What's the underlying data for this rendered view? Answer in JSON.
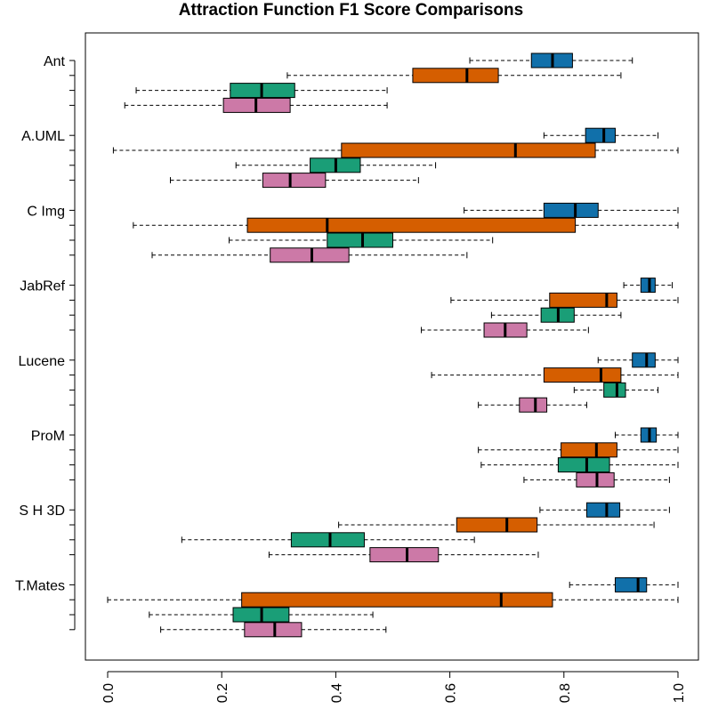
{
  "chart_data": {
    "type": "boxplot",
    "orientation": "horizontal",
    "title": "Attraction Function F1 Score Comparisons",
    "xlabel": "",
    "ylabel": "",
    "xlim": [
      0.0,
      1.0
    ],
    "x_ticks": [
      "0.0",
      "0.2",
      "0.4",
      "0.6",
      "0.8",
      "1.0"
    ],
    "series_colors": [
      "#1170aa",
      "#d55e00",
      "#1a9e77",
      "#cc79a7"
    ],
    "groups": [
      {
        "name": "Ant",
        "boxes": [
          {
            "min": 0.635,
            "q1": 0.743,
            "median": 0.78,
            "q3": 0.815,
            "max": 0.92
          },
          {
            "min": 0.315,
            "q1": 0.535,
            "median": 0.63,
            "q3": 0.685,
            "max": 0.9
          },
          {
            "min": 0.05,
            "q1": 0.215,
            "median": 0.27,
            "q3": 0.328,
            "max": 0.49
          },
          {
            "min": 0.03,
            "q1": 0.203,
            "median": 0.26,
            "q3": 0.32,
            "max": 0.49
          }
        ]
      },
      {
        "name": "A.UML",
        "boxes": [
          {
            "min": 0.765,
            "q1": 0.838,
            "median": 0.87,
            "q3": 0.89,
            "max": 0.965
          },
          {
            "min": 0.01,
            "q1": 0.41,
            "median": 0.715,
            "q3": 0.855,
            "max": 1.0
          },
          {
            "min": 0.225,
            "q1": 0.355,
            "median": 0.4,
            "q3": 0.443,
            "max": 0.575
          },
          {
            "min": 0.11,
            "q1": 0.272,
            "median": 0.32,
            "q3": 0.382,
            "max": 0.545
          }
        ]
      },
      {
        "name": "C Img",
        "boxes": [
          {
            "min": 0.625,
            "q1": 0.765,
            "median": 0.82,
            "q3": 0.86,
            "max": 1.0
          },
          {
            "min": 0.045,
            "q1": 0.245,
            "median": 0.385,
            "q3": 0.82,
            "max": 1.0
          },
          {
            "min": 0.213,
            "q1": 0.385,
            "median": 0.447,
            "q3": 0.5,
            "max": 0.675
          },
          {
            "min": 0.078,
            "q1": 0.285,
            "median": 0.358,
            "q3": 0.423,
            "max": 0.63
          }
        ]
      },
      {
        "name": "JabRef",
        "boxes": [
          {
            "min": 0.905,
            "q1": 0.935,
            "median": 0.95,
            "q3": 0.96,
            "max": 0.99
          },
          {
            "min": 0.602,
            "q1": 0.775,
            "median": 0.875,
            "q3": 0.893,
            "max": 1.0
          },
          {
            "min": 0.673,
            "q1": 0.76,
            "median": 0.79,
            "q3": 0.818,
            "max": 0.9
          },
          {
            "min": 0.55,
            "q1": 0.66,
            "median": 0.697,
            "q3": 0.735,
            "max": 0.843
          }
        ]
      },
      {
        "name": "Lucene",
        "boxes": [
          {
            "min": 0.86,
            "q1": 0.92,
            "median": 0.945,
            "q3": 0.96,
            "max": 1.0
          },
          {
            "min": 0.568,
            "q1": 0.765,
            "median": 0.865,
            "q3": 0.9,
            "max": 1.0
          },
          {
            "min": 0.818,
            "q1": 0.87,
            "median": 0.893,
            "q3": 0.908,
            "max": 0.965
          },
          {
            "min": 0.65,
            "q1": 0.722,
            "median": 0.75,
            "q3": 0.77,
            "max": 0.84
          }
        ]
      },
      {
        "name": "ProM",
        "boxes": [
          {
            "min": 0.89,
            "q1": 0.935,
            "median": 0.95,
            "q3": 0.962,
            "max": 1.0
          },
          {
            "min": 0.65,
            "q1": 0.795,
            "median": 0.857,
            "q3": 0.893,
            "max": 1.0
          },
          {
            "min": 0.655,
            "q1": 0.79,
            "median": 0.84,
            "q3": 0.88,
            "max": 1.0
          },
          {
            "min": 0.73,
            "q1": 0.822,
            "median": 0.858,
            "q3": 0.888,
            "max": 0.985
          }
        ]
      },
      {
        "name": "S H 3D",
        "boxes": [
          {
            "min": 0.758,
            "q1": 0.84,
            "median": 0.875,
            "q3": 0.898,
            "max": 0.985
          },
          {
            "min": 0.405,
            "q1": 0.612,
            "median": 0.7,
            "q3": 0.753,
            "max": 0.958
          },
          {
            "min": 0.13,
            "q1": 0.322,
            "median": 0.39,
            "q3": 0.45,
            "max": 0.643
          },
          {
            "min": 0.283,
            "q1": 0.46,
            "median": 0.525,
            "q3": 0.58,
            "max": 0.755
          }
        ]
      },
      {
        "name": "T.Mates",
        "boxes": [
          {
            "min": 0.81,
            "q1": 0.89,
            "median": 0.93,
            "q3": 0.945,
            "max": 1.0
          },
          {
            "min": 0.0,
            "q1": 0.235,
            "median": 0.69,
            "q3": 0.78,
            "max": 1.0
          },
          {
            "min": 0.073,
            "q1": 0.22,
            "median": 0.27,
            "q3": 0.318,
            "max": 0.465
          },
          {
            "min": 0.093,
            "q1": 0.24,
            "median": 0.293,
            "q3": 0.34,
            "max": 0.488
          }
        ]
      }
    ],
    "grid": false,
    "legend": "none"
  }
}
